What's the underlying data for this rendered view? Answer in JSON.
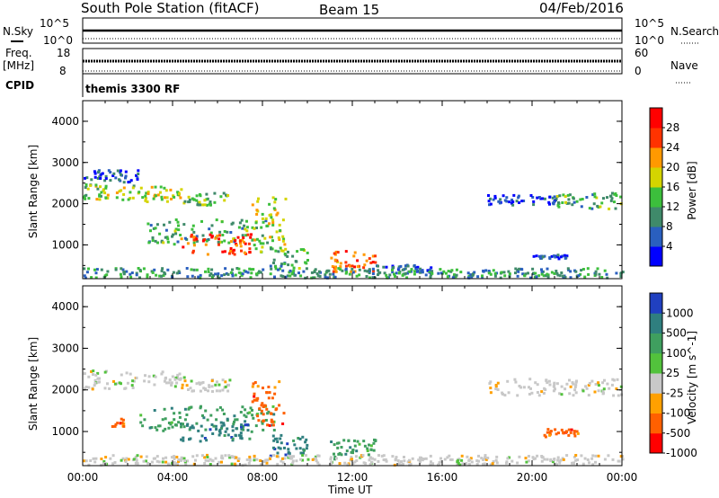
{
  "header": {
    "station": "South Pole Station (fitACF)",
    "beam": "Beam 15",
    "date": "04/Feb/2016"
  },
  "top_panels": {
    "nsky_label": "N.Sky",
    "nsky_ticks": [
      "10^5",
      "10^0"
    ],
    "nsearch_label": "N.Search",
    "nsearch_ticks": [
      "10^5",
      "10^0"
    ],
    "freq_label_1": "Freq.",
    "freq_label_2": "[MHz]",
    "freq_ticks": [
      "18",
      "8"
    ],
    "nave_label": "Nave",
    "nave_ticks": [
      "60",
      "0"
    ],
    "cpid_label": "CPID",
    "cpid_name": "themis 3300 RF"
  },
  "chart_data": [
    {
      "type": "heatmap",
      "title": "",
      "ylabel": "Slant Range [km]",
      "xlabel": "",
      "x_range_hours": [
        0,
        24
      ],
      "ylim": [
        180,
        4500
      ],
      "yticks": [
        "1000",
        "2000",
        "3000",
        "4000"
      ],
      "colorbar": {
        "label": "Power [dB]",
        "ticks": [
          "4",
          "8",
          "12",
          "16",
          "20",
          "24",
          "28"
        ],
        "colors": [
          "#0000ff",
          "#2a5fbf",
          "#3f8a6a",
          "#3cbf3c",
          "#d4d400",
          "#ff9900",
          "#ff3300",
          "#ff0000"
        ]
      },
      "bands": [
        {
          "t0": 0.0,
          "t1": 2.5,
          "r0": 2050,
          "r1": 2450,
          "level": 0.5
        },
        {
          "t0": 2.5,
          "t1": 4.5,
          "r0": 2000,
          "r1": 2400,
          "level": 0.55
        },
        {
          "t0": 4.5,
          "t1": 6.5,
          "r0": 1950,
          "r1": 2250,
          "level": 0.4
        },
        {
          "t0": 0.0,
          "t1": 2.5,
          "r0": 2500,
          "r1": 2800,
          "level": 0.15
        },
        {
          "t0": 2.8,
          "t1": 8.5,
          "r0": 1000,
          "r1": 1600,
          "level": 0.35
        },
        {
          "t0": 4.3,
          "t1": 7.5,
          "r0": 750,
          "r1": 1250,
          "level": 0.85
        },
        {
          "t0": 7.5,
          "t1": 9.0,
          "r0": 800,
          "r1": 2200,
          "level": 0.55
        },
        {
          "t0": 8.3,
          "t1": 10.0,
          "r0": 400,
          "r1": 900,
          "level": 0.35
        },
        {
          "t0": 11.0,
          "t1": 13.0,
          "r0": 300,
          "r1": 850,
          "level": 0.8
        },
        {
          "t0": 13.0,
          "t1": 15.5,
          "r0": 300,
          "r1": 500,
          "level": 0.15
        },
        {
          "t0": 21.0,
          "t1": 24.0,
          "r0": 1850,
          "r1": 2250,
          "level": 0.35
        },
        {
          "t0": 18.0,
          "t1": 21.0,
          "r0": 1950,
          "r1": 2200,
          "level": 0.1
        },
        {
          "t0": 20.0,
          "t1": 21.5,
          "r0": 650,
          "r1": 750,
          "level": 0.1
        },
        {
          "t0": 0.0,
          "t1": 24.0,
          "r0": 180,
          "r1": 420,
          "level": 0.3
        }
      ]
    },
    {
      "type": "heatmap",
      "title": "",
      "ylabel": "Slant Range [km]",
      "xlabel": "Time UT",
      "x_range_hours": [
        0,
        24
      ],
      "xticks": [
        "00:00",
        "04:00",
        "08:00",
        "12:00",
        "16:00",
        "20:00",
        "00:00"
      ],
      "ylim": [
        180,
        4500
      ],
      "yticks": [
        "1000",
        "2000",
        "3000",
        "4000"
      ],
      "colorbar": {
        "label": "Velocity [m s^-1]",
        "ticks": [
          "1000",
          "500",
          "100",
          "25",
          "-25",
          "-100",
          "-500",
          "-1000"
        ],
        "colors": [
          "#2040c0",
          "#2f7f7f",
          "#3f9f5f",
          "#52c23c",
          "#c8c8c8",
          "#ffa000",
          "#ff6000",
          "#ff0000"
        ]
      },
      "bands": [
        {
          "t0": 0.0,
          "t1": 4.5,
          "r0": 2000,
          "r1": 2450,
          "level": 4
        },
        {
          "t0": 4.5,
          "t1": 6.5,
          "r0": 1950,
          "r1": 2250,
          "level": 4
        },
        {
          "t0": 2.5,
          "t1": 8.5,
          "r0": 1000,
          "r1": 1600,
          "level": 2
        },
        {
          "t0": 4.3,
          "t1": 7.5,
          "r0": 750,
          "r1": 1250,
          "level": 1
        },
        {
          "t0": 7.5,
          "t1": 8.9,
          "r0": 1100,
          "r1": 2200,
          "level": 6
        },
        {
          "t0": 8.3,
          "t1": 10.0,
          "r0": 400,
          "r1": 900,
          "level": 1
        },
        {
          "t0": 11.0,
          "t1": 13.0,
          "r0": 300,
          "r1": 850,
          "level": 2
        },
        {
          "t0": 1.2,
          "t1": 1.8,
          "r0": 1100,
          "r1": 1300,
          "level": 6
        },
        {
          "t0": 18.0,
          "t1": 24.0,
          "r0": 1850,
          "r1": 2250,
          "level": 4
        },
        {
          "t0": 20.5,
          "t1": 22.0,
          "r0": 850,
          "r1": 1050,
          "level": 6
        },
        {
          "t0": 0.0,
          "t1": 24.0,
          "r0": 180,
          "r1": 420,
          "level": 4
        }
      ]
    }
  ]
}
